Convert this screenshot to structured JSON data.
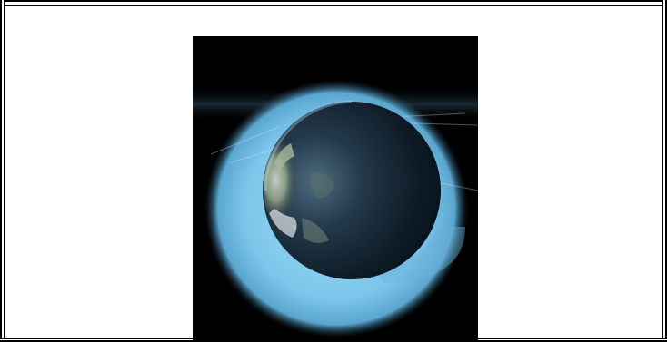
{
  "page": {
    "background": "#ffffff",
    "border_color": "#000000"
  },
  "figure": {
    "subject": "earth-with-atmosphere-glow",
    "background": "#000000",
    "glow_color": "#7fc8ee",
    "planet_shadow_color": "#0b1a24",
    "land_color": "#8a9a80"
  }
}
